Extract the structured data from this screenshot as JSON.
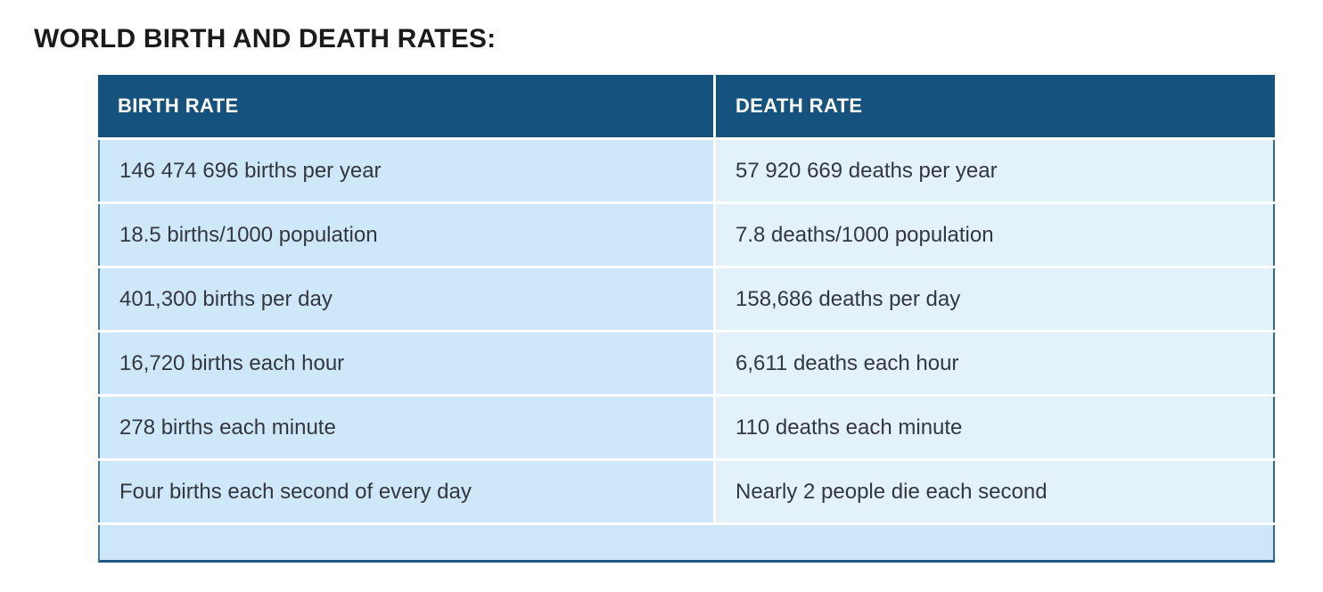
{
  "page": {
    "title": "WORLD BIRTH AND DEATH RATES:"
  },
  "table": {
    "columns": [
      {
        "key": "birth",
        "label": "BIRTH RATE"
      },
      {
        "key": "death",
        "label": "DEATH RATE"
      }
    ],
    "rows": [
      {
        "birth": "146 474 696 births per year",
        "death": "57 920 669 deaths per year"
      },
      {
        "birth": "18.5 births/1000 population",
        "death": "7.8 deaths/1000 population"
      },
      {
        "birth": "401,300 births per day",
        "death": "158,686 deaths per day"
      },
      {
        "birth": "16,720 births each hour",
        "death": "6,611 deaths each hour"
      },
      {
        "birth": "278 births each minute",
        "death": "110 deaths each minute"
      },
      {
        "birth": "Four births each second of every day",
        "death": "Nearly 2 people die each second"
      }
    ],
    "colors": {
      "header_bg": "#15537e",
      "header_text": "#ffffff",
      "cell_bg_left": "#cfe8f9",
      "cell_bg_right": "#e3f1fb",
      "footer_bg": "#cde7f8",
      "edge_border": "#4579a2",
      "bottom_border": "#1f5880",
      "cell_text": "#333740",
      "title_text": "#1b1b1b"
    }
  },
  "chart_data": {
    "type": "table",
    "title": "WORLD BIRTH AND DEATH RATES:",
    "columns": [
      "BIRTH RATE",
      "DEATH RATE"
    ],
    "rows": [
      [
        "146 474 696 births per year",
        "57 920 669 deaths per year"
      ],
      [
        "18.5 births/1000 population",
        "7.8 deaths/1000 population"
      ],
      [
        "401,300 births per day",
        "158,686 deaths per day"
      ],
      [
        "16,720 births each hour",
        "6,611 deaths each hour"
      ],
      [
        "278 births each minute",
        "110 deaths each minute"
      ],
      [
        "Four births each second of every day",
        "Nearly 2 people die each second"
      ]
    ]
  }
}
